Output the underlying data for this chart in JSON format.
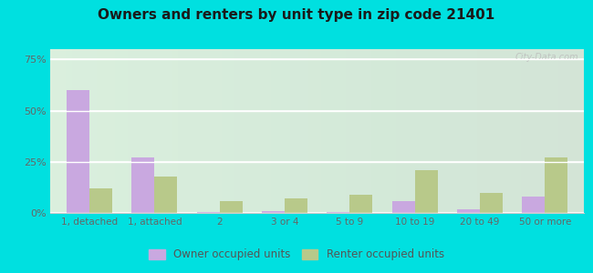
{
  "title": "Owners and renters by unit type in zip code 21401",
  "categories": [
    "1, detached",
    "1, attached",
    "2",
    "3 or 4",
    "5 to 9",
    "10 to 19",
    "20 to 49",
    "50 or more"
  ],
  "owner_values": [
    60,
    27,
    0.5,
    1,
    0.5,
    6,
    2,
    8
  ],
  "renter_values": [
    12,
    18,
    6,
    7,
    9,
    21,
    10,
    27
  ],
  "owner_color": "#c9a8e0",
  "renter_color": "#b8c98a",
  "ylim": [
    0,
    80
  ],
  "yticks": [
    0,
    25,
    50,
    75
  ],
  "ytick_labels": [
    "0%",
    "25%",
    "50%",
    "75%"
  ],
  "legend_owner": "Owner occupied units",
  "legend_renter": "Renter occupied units",
  "plot_bg_top": "#e8f5e9",
  "plot_bg_bottom": "#f5fff5",
  "outer_background": "#00e0e0",
  "watermark": "City-Data.com",
  "title_fontsize": 11,
  "bar_width": 0.35,
  "grid_color": "#ffffff",
  "tick_color": "#666666"
}
